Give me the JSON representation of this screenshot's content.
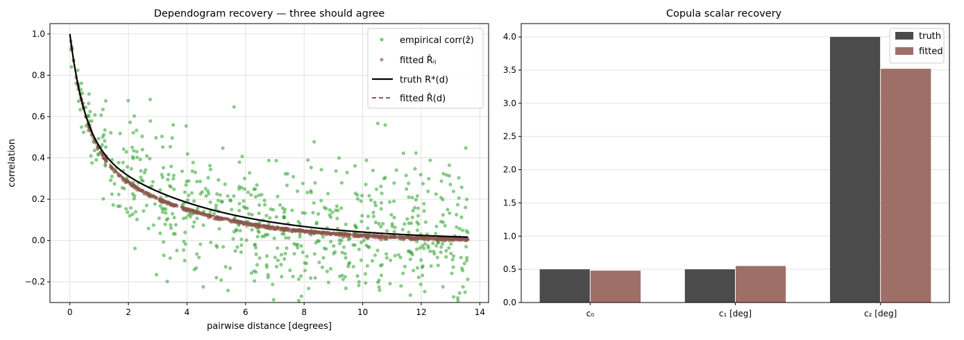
{
  "chart_data": [
    {
      "type": "scatter",
      "title": "Dependogram recovery — three should agree",
      "xlabel": "pairwise distance [degrees]",
      "ylabel": "correlation",
      "xlim": [
        -0.68,
        14.3
      ],
      "ylim": [
        -0.3,
        1.05
      ],
      "xticks": [
        0,
        2,
        4,
        6,
        8,
        10,
        12,
        14
      ],
      "yticks": [
        -0.2,
        0.0,
        0.2,
        0.4,
        0.6,
        0.8,
        1.0
      ],
      "xtick_labels": [
        "0",
        "2",
        "4",
        "6",
        "8",
        "10",
        "12",
        "14"
      ],
      "ytick_labels": [
        "−0.2",
        "0.0",
        "0.2",
        "0.4",
        "0.6",
        "0.8",
        "1.0"
      ],
      "grid": true,
      "legend_position": "top-right",
      "colors": {
        "empirical": "#2ca02c",
        "fitted_points": "#8c564b",
        "truth": "#000000",
        "fitted_line": "#8c564b"
      },
      "truth_model": {
        "c0": 0.5,
        "c1": 0.5,
        "c2": 4.0,
        "dmax": 13.6
      },
      "fitted_model": {
        "c0": 0.48,
        "c1": 0.55,
        "c2": 3.52,
        "dmax": 13.6
      },
      "empirical_points": {
        "count": 700,
        "seed": 7,
        "dmax": 13.6,
        "noise_sd": 0.17
      },
      "legend": [
        {
          "label": "empirical corr(ẑ)",
          "kind": "scatter",
          "series": "empirical"
        },
        {
          "label": "fitted R̂ᵢⱼ",
          "kind": "scatter",
          "series": "fitted_points"
        },
        {
          "label": "truth R*(d)",
          "kind": "line",
          "series": "truth"
        },
        {
          "label": "fitted R̂(d)",
          "kind": "dashed",
          "series": "fitted_line"
        }
      ]
    },
    {
      "type": "bar",
      "title": "Copula scalar recovery",
      "categories": [
        "c₀",
        "c₁ [deg]",
        "c₂ [deg]"
      ],
      "series": [
        {
          "name": "truth",
          "values": [
            0.5,
            0.5,
            4.0
          ],
          "color": "#4b4b4b"
        },
        {
          "name": "fitted",
          "values": [
            0.48,
            0.55,
            3.52
          ],
          "color": "#9e6f66"
        }
      ],
      "ylim": [
        0,
        4.2
      ],
      "yticks": [
        0.0,
        0.5,
        1.0,
        1.5,
        2.0,
        2.5,
        3.0,
        3.5,
        4.0
      ],
      "ytick_labels": [
        "0.0",
        "0.5",
        "1.0",
        "1.5",
        "2.0",
        "2.5",
        "3.0",
        "3.5",
        "4.0"
      ],
      "grid": true,
      "legend_position": "top-right"
    }
  ]
}
